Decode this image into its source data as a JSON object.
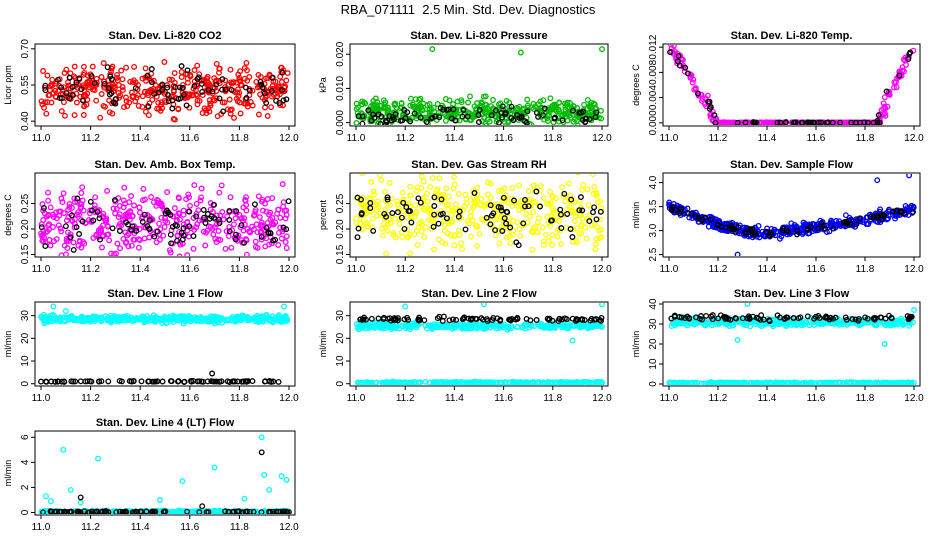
{
  "page_title": "RBA_071111  2.5 Min. Std. Dev. Diagnostics",
  "colors": {
    "red": "#ff0000",
    "green": "#00bb00",
    "magenta": "#ff00ff",
    "yellow": "#ffff00",
    "blue": "#0000ff",
    "cyan": "#00ffff",
    "black": "#000000"
  },
  "chart_data": [
    {
      "type": "scatter",
      "title": "Stan. Dev. Li-820 CO2",
      "ylabel": "Licor ppm",
      "xlim": [
        11.0,
        12.0
      ],
      "xticks": [
        "11.0",
        "11.2",
        "11.4",
        "11.6",
        "11.8",
        "12.0"
      ],
      "ylim": [
        0.38,
        0.72
      ],
      "yticks": [
        "0.40",
        "0.55",
        "0.70"
      ],
      "ytick_values": [
        0.4,
        0.55,
        0.7
      ],
      "series": [
        {
          "color": "#ff0000",
          "pattern": "band",
          "center": 0.53,
          "spread": 0.08,
          "n": 420
        },
        {
          "color": "#000000",
          "pattern": "band",
          "center": 0.53,
          "spread": 0.07,
          "n": 80
        }
      ]
    },
    {
      "type": "scatter",
      "title": "Stan. Dev. Li-820 Pressure",
      "ylabel": "kPa",
      "xlim": [
        11.0,
        12.0
      ],
      "xticks": [
        "11.0",
        "11.2",
        "11.4",
        "11.6",
        "11.8",
        "12.0"
      ],
      "ylim": [
        -0.001,
        0.023
      ],
      "yticks": [
        "0.000",
        "0.010",
        "0.020"
      ],
      "ytick_values": [
        0.0,
        0.01,
        0.02
      ],
      "series": [
        {
          "color": "#00bb00",
          "pattern": "band",
          "center": 0.003,
          "spread": 0.003,
          "n": 420
        },
        {
          "color": "#000000",
          "pattern": "band",
          "center": 0.002,
          "spread": 0.002,
          "n": 80
        }
      ],
      "outliers": [
        {
          "x": 11.31,
          "y": 0.0215,
          "color": "#00bb00"
        },
        {
          "x": 11.67,
          "y": 0.0205,
          "color": "#00bb00"
        },
        {
          "x": 12.0,
          "y": 0.0215,
          "color": "#00bb00"
        }
      ]
    },
    {
      "type": "scatter",
      "title": "Stan. Dev. Li-820 Temp.",
      "ylabel": "degrees C",
      "xlim": [
        11.0,
        12.0
      ],
      "xticks": [
        "11.0",
        "11.2",
        "11.4",
        "11.6",
        "11.8",
        "12.0"
      ],
      "ylim": [
        -0.0005,
        0.0125
      ],
      "yticks": [
        "0.000",
        "0.004",
        "0.008",
        "0.012"
      ],
      "ytick_values": [
        0.0,
        0.004,
        0.008,
        0.012
      ],
      "series": [
        {
          "color": "#ff00ff",
          "pattern": "valley",
          "high": 0.0125,
          "low": 0.0,
          "x1": 11.2,
          "x2": 11.85,
          "n": 300
        },
        {
          "color": "#000000",
          "pattern": "valley",
          "high": 0.0125,
          "low": 0.0,
          "x1": 11.2,
          "x2": 11.85,
          "n": 60
        }
      ]
    },
    {
      "type": "scatter",
      "title": "Stan. Dev. Amb. Box Temp.",
      "ylabel": "degrees C",
      "xlim": [
        11.0,
        12.0
      ],
      "xticks": [
        "11.0",
        "11.2",
        "11.4",
        "11.6",
        "11.8",
        "12.0"
      ],
      "ylim": [
        0.145,
        0.31
      ],
      "yticks": [
        "0.15",
        "0.20",
        "0.25"
      ],
      "ytick_values": [
        0.15,
        0.2,
        0.25
      ],
      "series": [
        {
          "color": "#ff00ff",
          "pattern": "band",
          "center": 0.215,
          "spread": 0.05,
          "n": 420
        },
        {
          "color": "#000000",
          "pattern": "band",
          "center": 0.21,
          "spread": 0.04,
          "n": 80
        }
      ]
    },
    {
      "type": "scatter",
      "title": "Stan. Dev. Gas Stream RH",
      "ylabel": "percent",
      "xlim": [
        11.0,
        12.0
      ],
      "xticks": [
        "11.0",
        "11.2",
        "11.4",
        "11.6",
        "11.8",
        "12.0"
      ],
      "ylim": [
        0.145,
        0.31
      ],
      "yticks": [
        "0.15",
        "0.20",
        "0.25"
      ],
      "ytick_values": [
        0.15,
        0.2,
        0.25
      ],
      "series": [
        {
          "color": "#ffff00",
          "pattern": "band",
          "center": 0.23,
          "spread": 0.055,
          "n": 420
        },
        {
          "color": "#000000",
          "pattern": "band",
          "center": 0.23,
          "spread": 0.04,
          "n": 80
        }
      ]
    },
    {
      "type": "scatter",
      "title": "Stan. Dev. Sample Flow",
      "ylabel": "ml/min",
      "xlim": [
        11.0,
        12.0
      ],
      "xticks": [
        "11.0",
        "11.2",
        "11.4",
        "11.6",
        "11.8",
        "12.0"
      ],
      "ylim": [
        2.45,
        4.2
      ],
      "yticks": [
        "2.5",
        "3.0",
        "3.5",
        "4.0"
      ],
      "ytick_values": [
        2.5,
        3.0,
        3.5,
        4.0
      ],
      "series": [
        {
          "color": "#0000ff",
          "pattern": "uvalley",
          "high": 3.5,
          "low": 2.95,
          "spread": 0.1,
          "n": 420
        },
        {
          "color": "#000000",
          "pattern": "uvalley",
          "high": 3.5,
          "low": 2.95,
          "spread": 0.06,
          "n": 80
        }
      ],
      "outliers": [
        {
          "x": 11.98,
          "y": 4.15,
          "color": "#0000ff"
        },
        {
          "x": 11.85,
          "y": 4.05,
          "color": "#0000ff"
        },
        {
          "x": 11.28,
          "y": 2.5,
          "color": "#0000ff"
        }
      ]
    },
    {
      "type": "scatter",
      "title": "Stan. Dev. Line 1 Flow",
      "ylabel": "ml/min",
      "xlim": [
        11.0,
        12.0
      ],
      "xticks": [
        "11.0",
        "11.2",
        "11.4",
        "11.6",
        "11.8",
        "12.0"
      ],
      "ylim": [
        -1,
        36
      ],
      "yticks": [
        "0",
        "10",
        "20",
        "30"
      ],
      "ytick_values": [
        0,
        10,
        20,
        30
      ],
      "series": [
        {
          "color": "#00ffff",
          "pattern": "band",
          "center": 28.5,
          "spread": 1.2,
          "n": 420
        },
        {
          "color": "#000000",
          "pattern": "band",
          "center": 1.0,
          "spread": 0.2,
          "n": 80
        }
      ],
      "outliers": [
        {
          "x": 11.05,
          "y": 34,
          "color": "#00ffff"
        },
        {
          "x": 11.98,
          "y": 34,
          "color": "#00ffff"
        },
        {
          "x": 11.1,
          "y": 32,
          "color": "#00ffff"
        },
        {
          "x": 11.69,
          "y": 4.5,
          "color": "#000000"
        }
      ]
    },
    {
      "type": "scatter",
      "title": "Stan. Dev. Line 2 Flow",
      "ylabel": "ml/min",
      "xlim": [
        11.0,
        12.0
      ],
      "xticks": [
        "11.0",
        "11.2",
        "11.4",
        "11.6",
        "11.8",
        "12.0"
      ],
      "ylim": [
        -1,
        36
      ],
      "yticks": [
        "0",
        "10",
        "20",
        "30"
      ],
      "ytick_values": [
        0,
        10,
        20,
        30
      ],
      "series": [
        {
          "color": "#00ffff",
          "pattern": "band",
          "center": 25.5,
          "spread": 1.2,
          "n": 320
        },
        {
          "color": "#00ffff",
          "pattern": "band",
          "center": 0.5,
          "spread": 0.3,
          "n": 260
        },
        {
          "color": "#000000",
          "pattern": "band",
          "center": 28.5,
          "spread": 0.8,
          "n": 90
        }
      ],
      "outliers": [
        {
          "x": 11.2,
          "y": 34,
          "color": "#00ffff"
        },
        {
          "x": 11.52,
          "y": 35,
          "color": "#00ffff"
        },
        {
          "x": 11.88,
          "y": 19,
          "color": "#00ffff"
        },
        {
          "x": 12.0,
          "y": 35,
          "color": "#00ffff"
        }
      ]
    },
    {
      "type": "scatter",
      "title": "Stan. Dev. Line 3 Flow",
      "ylabel": "ml/min",
      "xlim": [
        11.0,
        12.0
      ],
      "xticks": [
        "11.0",
        "11.2",
        "11.4",
        "11.6",
        "11.8",
        "12.0"
      ],
      "ylim": [
        -1,
        41
      ],
      "yticks": [
        "0",
        "10",
        "20",
        "30",
        "40"
      ],
      "ytick_values": [
        0,
        10,
        20,
        30,
        40
      ],
      "series": [
        {
          "color": "#00ffff",
          "pattern": "band",
          "center": 31.0,
          "spread": 1.5,
          "n": 320
        },
        {
          "color": "#00ffff",
          "pattern": "band",
          "center": 0.5,
          "spread": 0.3,
          "n": 260
        },
        {
          "color": "#000000",
          "pattern": "band",
          "center": 33.0,
          "spread": 1.0,
          "n": 90
        }
      ],
      "outliers": [
        {
          "x": 11.32,
          "y": 40,
          "color": "#00ffff"
        },
        {
          "x": 11.28,
          "y": 22,
          "color": "#00ffff"
        },
        {
          "x": 11.88,
          "y": 20,
          "color": "#00ffff"
        },
        {
          "x": 12.0,
          "y": 37,
          "color": "#00ffff"
        }
      ]
    },
    {
      "type": "scatter",
      "title": "Stan. Dev. Line 4 (LT) Flow",
      "ylabel": "ml/min",
      "xlim": [
        11.0,
        12.0
      ],
      "xticks": [
        "11.0",
        "11.2",
        "11.4",
        "11.6",
        "11.8",
        "12.0"
      ],
      "ylim": [
        -0.2,
        6.5
      ],
      "yticks": [
        "0",
        "2",
        "4",
        "6"
      ],
      "ytick_values": [
        0,
        2,
        4,
        6
      ],
      "series": [
        {
          "color": "#00ffff",
          "pattern": "band",
          "center": 0.05,
          "spread": 0.08,
          "n": 320
        },
        {
          "color": "#000000",
          "pattern": "band",
          "center": 0.05,
          "spread": 0.05,
          "n": 90
        }
      ],
      "outliers": [
        {
          "x": 11.02,
          "y": 1.3,
          "color": "#00ffff"
        },
        {
          "x": 11.04,
          "y": 0.9,
          "color": "#00ffff"
        },
        {
          "x": 11.09,
          "y": 5.0,
          "color": "#00ffff"
        },
        {
          "x": 11.12,
          "y": 1.8,
          "color": "#00ffff"
        },
        {
          "x": 11.16,
          "y": 0.8,
          "color": "#00ffff"
        },
        {
          "x": 11.23,
          "y": 4.3,
          "color": "#00ffff"
        },
        {
          "x": 11.48,
          "y": 1.0,
          "color": "#00ffff"
        },
        {
          "x": 11.57,
          "y": 2.5,
          "color": "#00ffff"
        },
        {
          "x": 11.7,
          "y": 3.6,
          "color": "#00ffff"
        },
        {
          "x": 11.82,
          "y": 1.1,
          "color": "#00ffff"
        },
        {
          "x": 11.89,
          "y": 6.0,
          "color": "#00ffff"
        },
        {
          "x": 11.9,
          "y": 3.0,
          "color": "#00ffff"
        },
        {
          "x": 11.92,
          "y": 1.8,
          "color": "#00ffff"
        },
        {
          "x": 11.97,
          "y": 2.9,
          "color": "#00ffff"
        },
        {
          "x": 11.99,
          "y": 2.6,
          "color": "#00ffff"
        },
        {
          "x": 11.89,
          "y": 4.8,
          "color": "#000000"
        },
        {
          "x": 11.16,
          "y": 1.2,
          "color": "#000000"
        },
        {
          "x": 11.65,
          "y": 0.5,
          "color": "#000000"
        }
      ]
    }
  ]
}
